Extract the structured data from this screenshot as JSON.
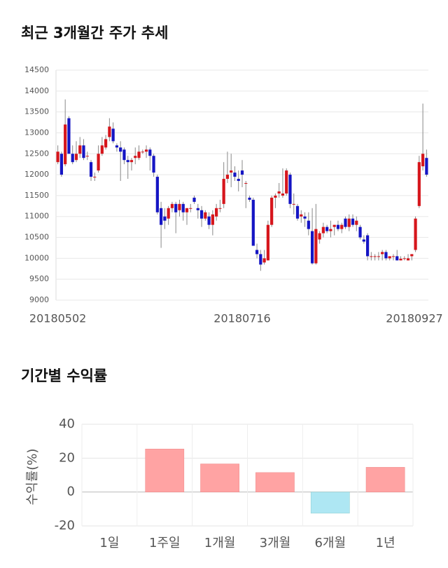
{
  "chart_data": [
    {
      "type": "candlestick",
      "title": "최근 3개월간 주가 추세",
      "categories": [
        "20180502",
        null,
        null,
        null,
        null,
        null,
        null,
        null,
        null,
        null,
        null,
        null,
        null,
        null,
        null,
        null,
        null,
        null,
        null,
        null,
        null,
        null,
        null,
        null,
        null,
        null,
        null,
        null,
        null,
        null,
        null,
        null,
        null,
        null,
        null,
        null,
        null,
        null,
        null,
        null,
        null,
        null,
        null,
        null,
        null,
        null,
        null,
        null,
        null,
        null,
        "20180716",
        null,
        null,
        null,
        null,
        null,
        null,
        null,
        null,
        null,
        null,
        null,
        null,
        null,
        null,
        null,
        null,
        null,
        null,
        null,
        null,
        null,
        null,
        null,
        null,
        null,
        null,
        null,
        null,
        null,
        null,
        null,
        null,
        null,
        null,
        null,
        null,
        null,
        null,
        null,
        null,
        null,
        null,
        null,
        null,
        null,
        null,
        null,
        null,
        null,
        "20180927"
      ],
      "ohlc": [
        [
          12300,
          12700,
          12250,
          12550
        ],
        [
          12500,
          12550,
          11950,
          12000
        ],
        [
          12250,
          13800,
          12200,
          13200
        ],
        [
          13350,
          13400,
          12500,
          12500
        ],
        [
          12500,
          12700,
          12250,
          12300
        ],
        [
          12350,
          12800,
          12300,
          12500
        ],
        [
          12500,
          12900,
          12400,
          12700
        ],
        [
          12700,
          12850,
          12350,
          12400
        ],
        [
          12450,
          12550,
          12350,
          12450
        ],
        [
          12300,
          12350,
          11850,
          11950
        ],
        [
          11950,
          12050,
          11850,
          11950
        ],
        [
          12100,
          12700,
          12050,
          12500
        ],
        [
          12500,
          12900,
          12450,
          12700
        ],
        [
          12650,
          12950,
          12600,
          12850
        ],
        [
          12900,
          13350,
          12800,
          13150
        ],
        [
          13100,
          13250,
          12750,
          12800
        ],
        [
          12700,
          12750,
          12550,
          12650
        ],
        [
          12650,
          12800,
          11850,
          12550
        ],
        [
          12600,
          12650,
          12250,
          12350
        ],
        [
          12350,
          12450,
          11900,
          12300
        ],
        [
          12300,
          12400,
          12100,
          12350
        ],
        [
          12400,
          12650,
          12250,
          12450
        ],
        [
          12400,
          12700,
          12350,
          12550
        ],
        [
          12550,
          12600,
          12500,
          12550
        ],
        [
          12550,
          12700,
          12400,
          12600
        ],
        [
          12600,
          12650,
          12100,
          12450
        ],
        [
          12450,
          12500,
          11950,
          12050
        ],
        [
          11950,
          12000,
          11050,
          11100
        ],
        [
          11200,
          11350,
          10250,
          10800
        ],
        [
          11000,
          11200,
          10700,
          10900
        ],
        [
          10950,
          11250,
          10800,
          11200
        ],
        [
          11200,
          11350,
          11100,
          11300
        ],
        [
          11300,
          11350,
          10600,
          11100
        ],
        [
          11150,
          11400,
          11000,
          11300
        ],
        [
          11300,
          11350,
          10900,
          11100
        ],
        [
          11100,
          11200,
          10800,
          11200
        ],
        [
          11200,
          11300,
          11100,
          11200
        ],
        [
          11450,
          11500,
          11300,
          11350
        ],
        [
          11200,
          11300,
          10950,
          11150
        ],
        [
          11150,
          11250,
          10750,
          10950
        ],
        [
          10950,
          11150,
          10900,
          11100
        ],
        [
          11000,
          11100,
          10700,
          10800
        ],
        [
          10800,
          11150,
          10550,
          11050
        ],
        [
          11000,
          11300,
          10900,
          11200
        ],
        [
          11200,
          11400,
          11100,
          11200
        ],
        [
          11300,
          12300,
          11200,
          11900
        ],
        [
          11900,
          12550,
          11800,
          12000
        ],
        [
          12050,
          12500,
          11700,
          12100
        ],
        [
          12050,
          12200,
          11850,
          11950
        ],
        [
          11900,
          12100,
          11600,
          11850
        ],
        [
          12100,
          12350,
          11700,
          12000
        ],
        [
          11800,
          11850,
          11200,
          11800
        ],
        [
          11450,
          11500,
          11350,
          11400
        ],
        [
          11400,
          11450,
          10300,
          10300
        ],
        [
          10200,
          10350,
          10000,
          10100
        ],
        [
          10100,
          10200,
          9700,
          9850
        ],
        [
          9900,
          10200,
          9850,
          10000
        ],
        [
          9950,
          10900,
          9950,
          10800
        ],
        [
          10800,
          11500,
          10750,
          11450
        ],
        [
          11450,
          11550,
          11200,
          11500
        ],
        [
          11550,
          11800,
          11450,
          11600
        ],
        [
          11500,
          12150,
          11450,
          11550
        ],
        [
          11550,
          12150,
          11500,
          12100
        ],
        [
          12000,
          12050,
          11200,
          11300
        ],
        [
          11300,
          11550,
          11050,
          11300
        ],
        [
          11250,
          11300,
          10900,
          10950
        ],
        [
          11000,
          11150,
          10850,
          11050
        ],
        [
          11000,
          11100,
          10750,
          10950
        ],
        [
          10900,
          11100,
          10550,
          10700
        ],
        [
          10650,
          11200,
          9850,
          9880
        ],
        [
          9880,
          11300,
          9850,
          10700
        ],
        [
          10450,
          10650,
          10350,
          10600
        ],
        [
          10600,
          10850,
          10500,
          10750
        ],
        [
          10750,
          10800,
          10600,
          10650
        ],
        [
          10650,
          10900,
          10500,
          10700
        ],
        [
          10750,
          10800,
          10550,
          10800
        ],
        [
          10800,
          10900,
          10650,
          10700
        ],
        [
          10700,
          10850,
          10600,
          10800
        ],
        [
          10950,
          11000,
          10700,
          10750
        ],
        [
          10750,
          11050,
          10650,
          10950
        ],
        [
          10950,
          11050,
          10750,
          10800
        ],
        [
          10800,
          11000,
          10650,
          10900
        ],
        [
          10750,
          10800,
          10450,
          10500
        ],
        [
          10450,
          10550,
          10350,
          10400
        ],
        [
          10550,
          10600,
          9950,
          10050
        ],
        [
          10050,
          10150,
          9950,
          10050
        ],
        [
          10050,
          10100,
          9950,
          10050
        ],
        [
          10050,
          10150,
          9950,
          10050
        ],
        [
          10100,
          10200,
          9950,
          10150
        ],
        [
          10150,
          10200,
          9950,
          10000
        ],
        [
          10000,
          10050,
          9950,
          10050
        ],
        [
          10050,
          10100,
          9950,
          10050
        ],
        [
          10050,
          10200,
          9950,
          9950
        ],
        [
          9950,
          10050,
          9950,
          9990
        ],
        [
          9990,
          10050,
          9950,
          10000
        ],
        [
          9950,
          10100,
          9950,
          10000
        ],
        [
          10050,
          10100,
          9950,
          10100
        ],
        [
          10200,
          11000,
          10150,
          10950
        ],
        [
          11250,
          12450,
          11200,
          12300
        ],
        [
          12200,
          13700,
          12100,
          12500
        ],
        [
          12400,
          12600,
          11950,
          12000
        ]
      ],
      "up_color": "#d6161c",
      "down_color": "#1515c4",
      "ylim": [
        9000,
        14500
      ],
      "yticks": [
        9000,
        9500,
        10000,
        10500,
        11000,
        11500,
        12000,
        12500,
        13000,
        13500,
        14000,
        14500
      ],
      "grid": true
    },
    {
      "type": "bar",
      "title": "기간별 수익률",
      "y_label": "수익률(%)",
      "categories": [
        "1일",
        "1주일",
        "1개월",
        "3개월",
        "6개월",
        "1년"
      ],
      "values": [
        0,
        25.4,
        16.6,
        11.5,
        -12.5,
        14.6
      ],
      "positive_color": "#ffa3a3",
      "negative_color": "#aee7f3",
      "ylim": [
        -20,
        40
      ],
      "yticks": [
        -20,
        0,
        20,
        40
      ],
      "grid": true
    }
  ]
}
